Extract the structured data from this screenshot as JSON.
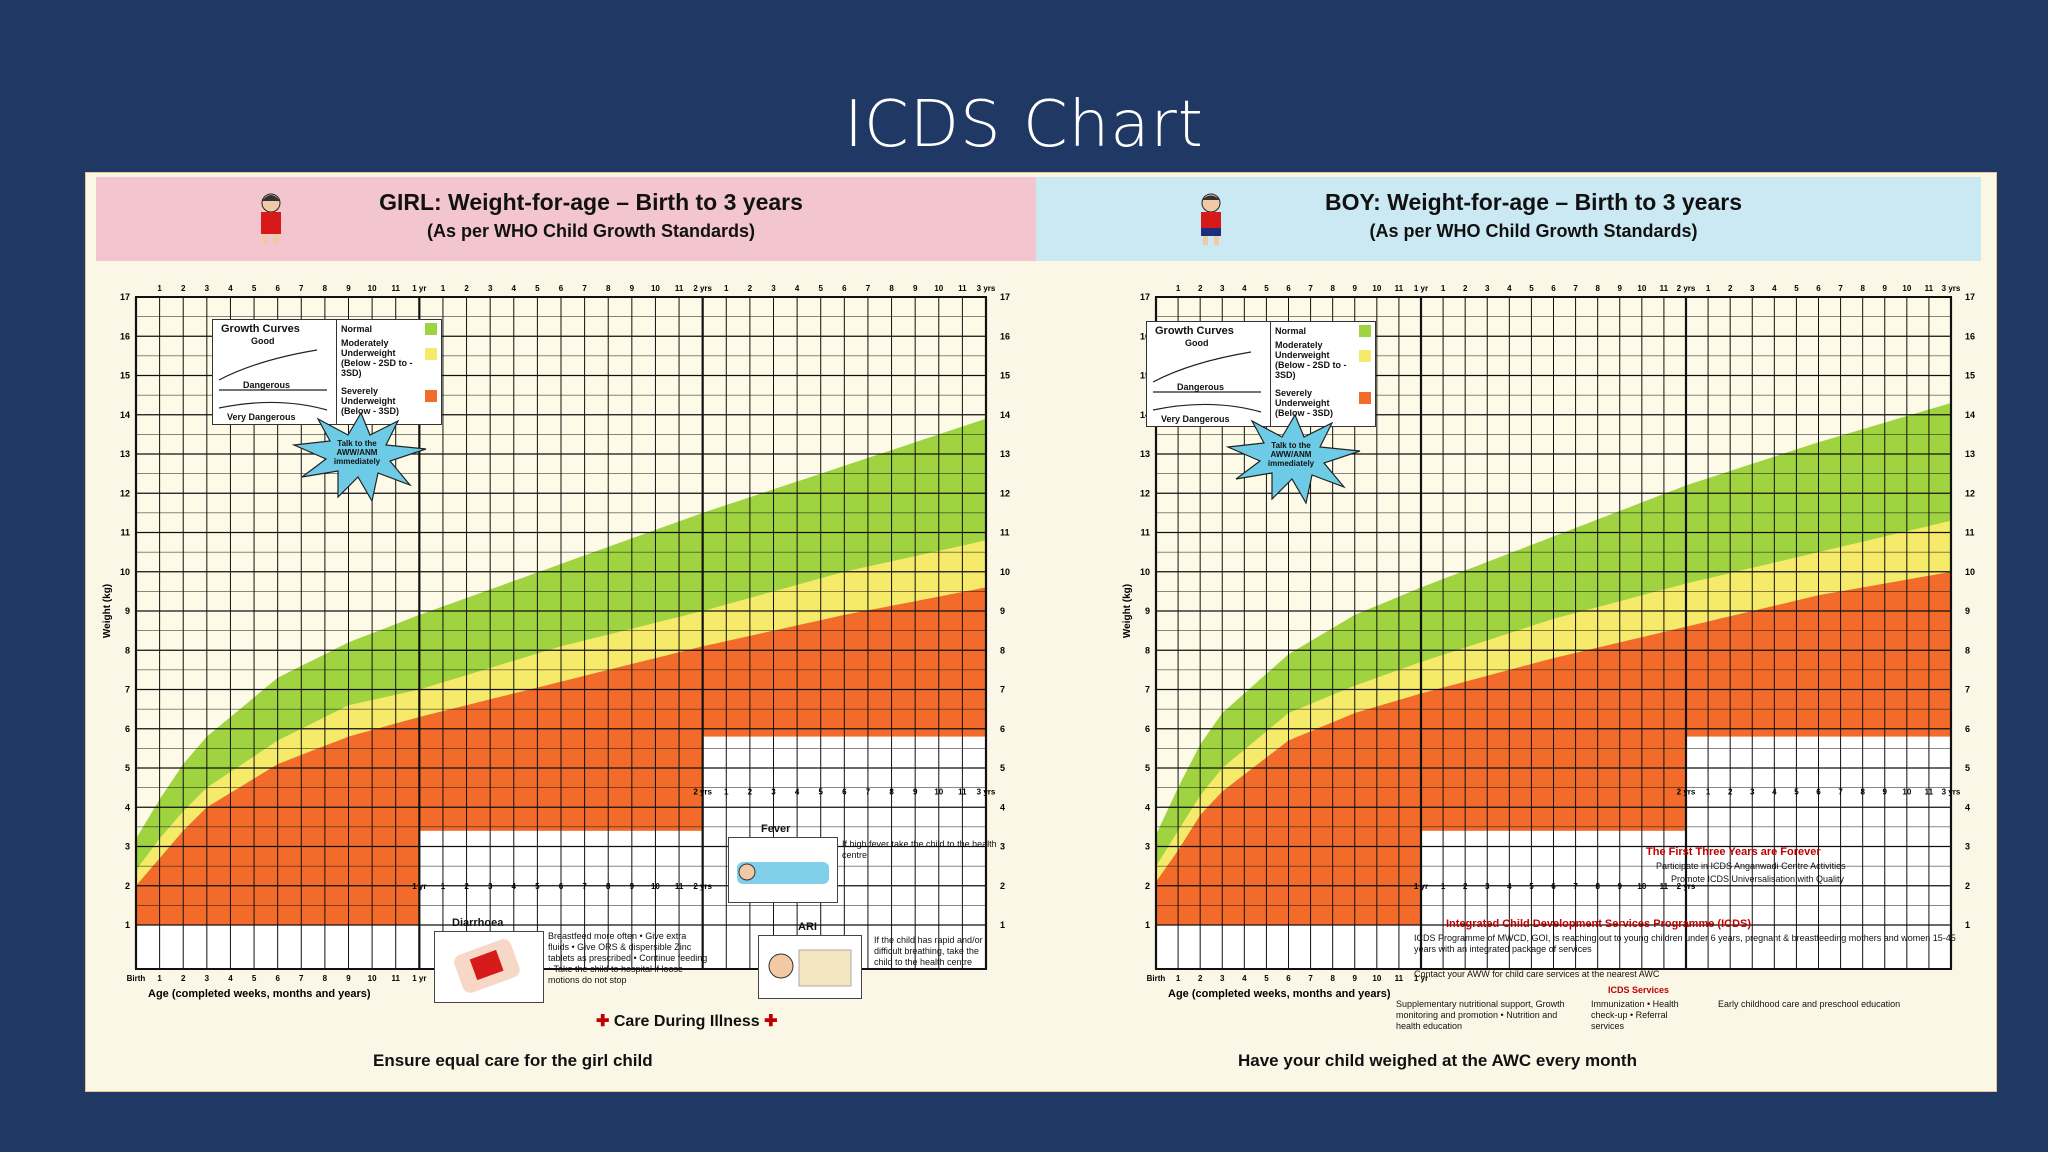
{
  "slide": {
    "title": "ICDS Chart"
  },
  "colors": {
    "background": "#203864",
    "poster": "#fbf7e6",
    "normal": "#9fd340",
    "moderate": "#f5ea6a",
    "severe": "#f26b2b",
    "girl_header": "#f3c6cf",
    "boy_header": "#cbe9f3"
  },
  "girl": {
    "title": "GIRL: Weight-for-age – Birth to 3 years",
    "subtitle": "(As per WHO Child Growth Standards)",
    "footer": "Ensure equal care for the girl child"
  },
  "boy": {
    "title": "BOY: Weight-for-age – Birth to 3 years",
    "subtitle": "(As per WHO Child Growth Standards)",
    "footer": "Have your child weighed at the AWC every month"
  },
  "legend": {
    "curves_title": "Growth Curves",
    "good": "Good",
    "dangerous": "Dangerous",
    "very_dangerous": "Very Dangerous",
    "normal": "Normal",
    "moderate": "Moderately Underweight (Below - 2SD to - 3SD)",
    "severe": "Severely Underweight (Below - 3SD)",
    "talk": "Talk to the AWW/ANM immediately"
  },
  "care": {
    "title": "Care During Illness",
    "fever_title": "Fever",
    "fever_text": "If high fever take the child to the health centre",
    "diarrhoea_title": "Diarrhoea",
    "diarrhoea_text": "Breastfeed more often • Give extra fluids • Give ORS & dispersible Zinc tablets as prescribed • Continue feeding • Take the child to hospital if loose motions do not stop",
    "ari_title": "ARI",
    "ari_text": "If the child has rapid and/or difficult breathing, take the child to the health centre"
  },
  "icds": {
    "forever_title": "The First Three Years are Forever",
    "forever_l1": "Participate in ICDS Anganwadi Centre Activities",
    "forever_l2": "Promote ICDS Universalisation with Quality",
    "prog_title": "Integrated Child Development Services Programme (ICDS)",
    "prog_b1": "ICDS Programme of MWCD, GOI, is reaching out to young children under 6 years, pregnant & breastfeeding mothers and women 15-45 years with an integrated package of services",
    "prog_b2": "Contact your AWW for child care services at the nearest AWC",
    "services_title": "ICDS Services",
    "services_c1": "Supplementary nutritional support, Growth monitoring and promotion • Nutrition and health education",
    "services_c2": "Immunization • Health check-up • Referral services",
    "services_c3": "Early childhood care and preschool education"
  },
  "chart_data": [
    {
      "type": "area",
      "title": "GIRL: Weight-for-age – Birth to 3 years",
      "xlabel": "Age (completed weeks, months and years)",
      "ylabel": "Weight (kg)",
      "ylim": [
        1,
        17
      ],
      "xlim": [
        0,
        36
      ],
      "x_unit": "months",
      "grid": true,
      "y_ticks": [
        1,
        2,
        3,
        4,
        5,
        6,
        7,
        8,
        9,
        10,
        11,
        12,
        13,
        14,
        15,
        16,
        17
      ],
      "x_ticks": [
        "Birth",
        "1",
        "2",
        "3",
        "4",
        "5",
        "6",
        "7",
        "8",
        "9",
        "10",
        "11",
        "1 yr",
        "1",
        "2",
        "3",
        "4",
        "5",
        "6",
        "7",
        "8",
        "9",
        "10",
        "11",
        "2 yrs",
        "1",
        "2",
        "3",
        "4",
        "5",
        "6",
        "7",
        "8",
        "9",
        "10",
        "11",
        "3 yrs"
      ],
      "x": [
        0,
        1,
        2,
        3,
        6,
        9,
        12,
        18,
        24,
        30,
        36
      ],
      "series": [
        {
          "name": "Normal",
          "values": [
            3.2,
            4.2,
            5.1,
            5.8,
            7.3,
            8.2,
            8.9,
            10.2,
            11.5,
            12.7,
            13.9
          ]
        },
        {
          "name": "Moderately Underweight (Below - 2SD to - 3SD)",
          "values": [
            2.4,
            3.2,
            3.9,
            4.5,
            5.7,
            6.6,
            7.0,
            8.1,
            9.0,
            10.0,
            10.8
          ]
        },
        {
          "name": "Severely Underweight (Below - 3SD)",
          "values": [
            2.0,
            2.7,
            3.4,
            4.0,
            5.1,
            5.8,
            6.3,
            7.2,
            8.1,
            8.9,
            9.6
          ]
        }
      ]
    },
    {
      "type": "area",
      "title": "BOY: Weight-for-age – Birth to 3 years",
      "xlabel": "Age (completed weeks, months and years)",
      "ylabel": "Weight (kg)",
      "ylim": [
        1,
        17
      ],
      "xlim": [
        0,
        36
      ],
      "x_unit": "months",
      "grid": true,
      "y_ticks": [
        1,
        2,
        3,
        4,
        5,
        6,
        7,
        8,
        9,
        10,
        11,
        12,
        13,
        14,
        15,
        16,
        17
      ],
      "x_ticks": [
        "Birth",
        "1",
        "2",
        "3",
        "4",
        "5",
        "6",
        "7",
        "8",
        "9",
        "10",
        "11",
        "1 yr",
        "1",
        "2",
        "3",
        "4",
        "5",
        "6",
        "7",
        "8",
        "9",
        "10",
        "11",
        "2 yrs",
        "1",
        "2",
        "3",
        "4",
        "5",
        "6",
        "7",
        "8",
        "9",
        "10",
        "11",
        "3 yrs"
      ],
      "x": [
        0,
        1,
        2,
        3,
        6,
        9,
        12,
        18,
        24,
        30,
        36
      ],
      "series": [
        {
          "name": "Normal",
          "values": [
            3.3,
            4.5,
            5.6,
            6.4,
            7.9,
            8.9,
            9.6,
            10.9,
            12.2,
            13.3,
            14.3
          ]
        },
        {
          "name": "Moderately Underweight (Below - 2SD to - 3SD)",
          "values": [
            2.5,
            3.4,
            4.3,
            5.0,
            6.4,
            7.1,
            7.7,
            8.8,
            9.7,
            10.5,
            11.3
          ]
        },
        {
          "name": "Severely Underweight (Below - 3SD)",
          "values": [
            2.1,
            2.9,
            3.8,
            4.4,
            5.7,
            6.4,
            6.9,
            7.8,
            8.6,
            9.4,
            10.0
          ]
        }
      ]
    }
  ]
}
